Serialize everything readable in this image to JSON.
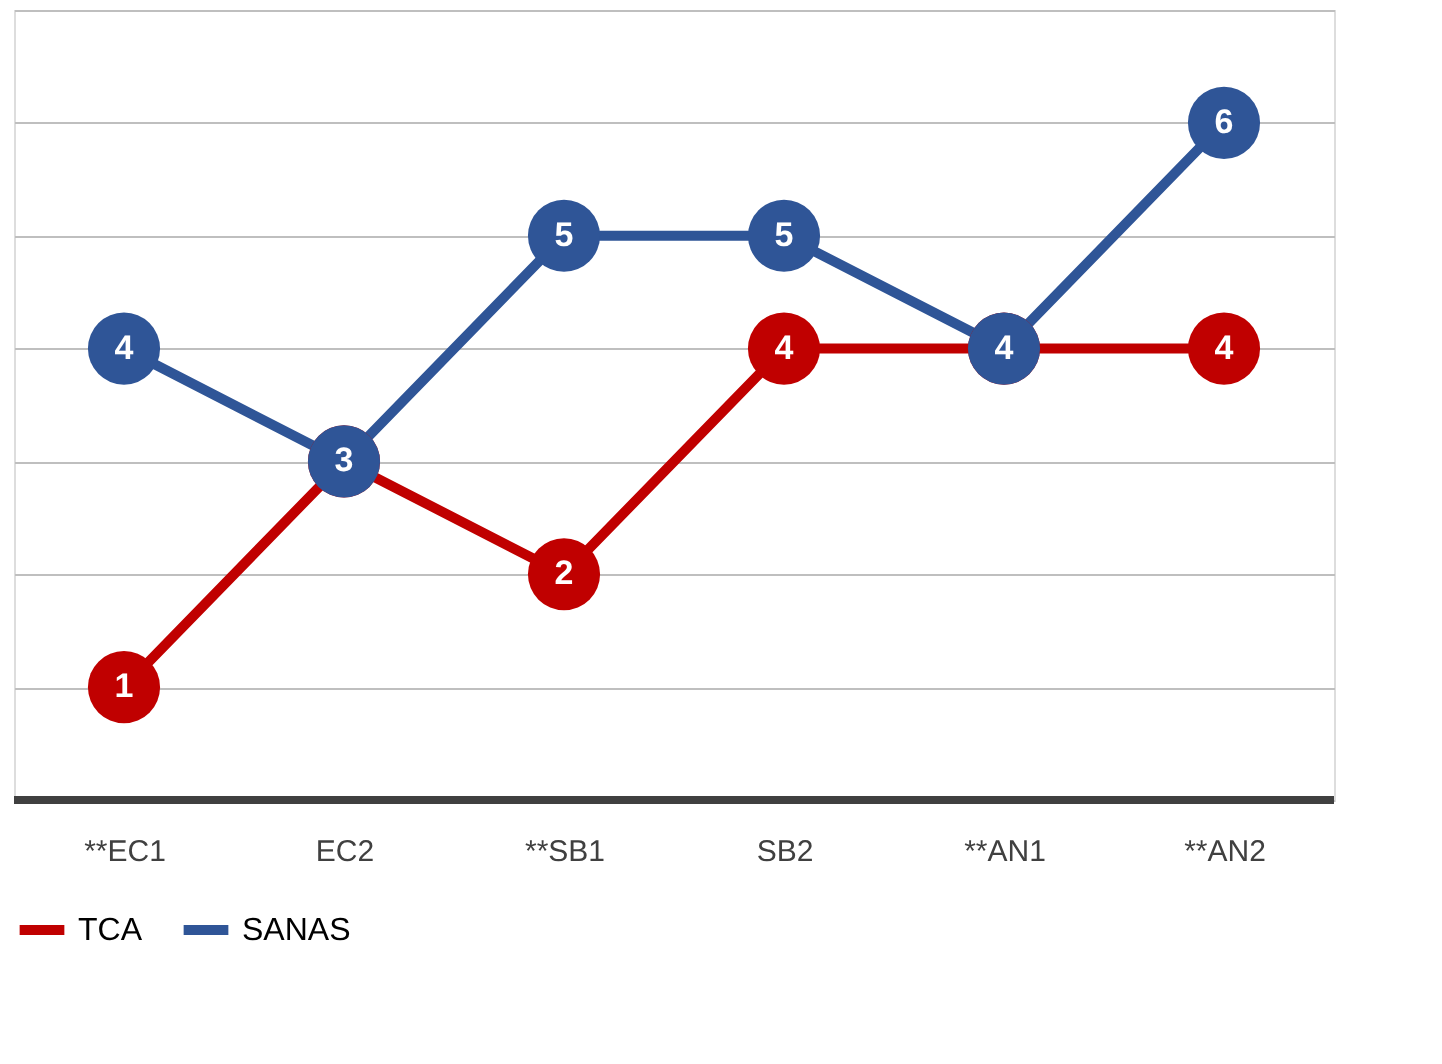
{
  "chart_data": {
    "type": "line",
    "categories": [
      "**EC1",
      "EC2",
      "**SB1",
      "SB2",
      "**AN1",
      "**AN2"
    ],
    "series": [
      {
        "name": "TCA",
        "color": "#c00000",
        "values": [
          1,
          3,
          2,
          4,
          4,
          4
        ],
        "value_labels": [
          "1",
          null,
          "2",
          "4",
          null,
          "4"
        ]
      },
      {
        "name": "SANAS",
        "color": "#2f5597",
        "values": [
          4,
          3,
          5,
          5,
          4,
          6
        ],
        "value_labels": [
          "4",
          "3",
          "5",
          "5",
          "4",
          "6"
        ]
      }
    ],
    "ylim": [
      0,
      7
    ],
    "yticks": [
      {
        "value": 0,
        "label": null
      },
      {
        "value": 1,
        "label": null
      },
      {
        "value": 2,
        "label": null
      },
      {
        "value": 3,
        "label": null
      },
      {
        "value": 4,
        "label": null
      },
      {
        "value": 5,
        "label": null
      },
      {
        "value": 6,
        "label": null
      },
      {
        "value": 7,
        "label": null
      }
    ],
    "tick_labels": "x",
    "grid": "y",
    "legend": "bottom",
    "marker": "circle",
    "line_style": "solid"
  }
}
